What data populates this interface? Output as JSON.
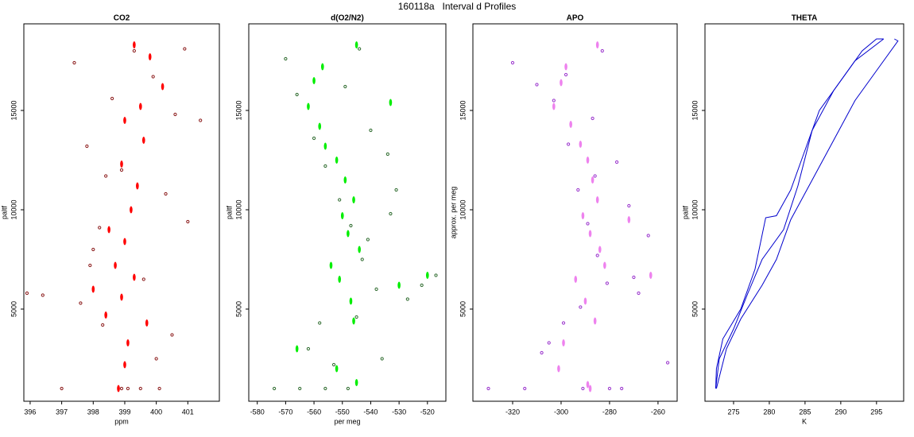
{
  "title": "160118a   Interval d Profiles",
  "chart_data": [
    {
      "type": "scatter",
      "title": "CO2",
      "xlabel": "ppm",
      "ylabel": "paltf",
      "xlim": [
        395.8,
        402
      ],
      "ylim": [
        360,
        19360
      ],
      "xticks": [
        396,
        397,
        398,
        399,
        400,
        401
      ],
      "yticks": [
        5000,
        10000,
        15000
      ],
      "series": [
        {
          "color": "#8b1a1a",
          "marker": "circle",
          "x": [
            397.0,
            397.4,
            397.8,
            398.0,
            398.3,
            398.6,
            398.9,
            399.3,
            399.6,
            400.0,
            400.3,
            400.6,
            400.9,
            401.4,
            397.6,
            398.2,
            399.9,
            400.5,
            401.0,
            395.9,
            396.4,
            398.9,
            399.1,
            399.5,
            400.1,
            397.9,
            398.4
          ],
          "y": [
            1000,
            17400,
            13200,
            8000,
            4200,
            15600,
            12000,
            18000,
            6500,
            2500,
            10800,
            14800,
            18100,
            14500,
            5300,
            9100,
            16700,
            3700,
            9400,
            5800,
            5700,
            1000,
            1000,
            1000,
            1000,
            7200,
            11700
          ]
        },
        {
          "color": "#ff0000",
          "marker": "dash",
          "x": [
            399.3,
            399.8,
            400.2,
            399.5,
            399.0,
            399.6,
            398.9,
            399.4,
            399.2,
            398.5,
            399.0,
            398.7,
            399.3,
            398.9,
            398.0,
            398.4,
            399.7,
            399.1,
            399.0,
            398.8
          ],
          "y": [
            18300,
            17700,
            16200,
            15200,
            14500,
            13500,
            12300,
            11200,
            10000,
            9000,
            8400,
            7200,
            6600,
            5600,
            6000,
            4700,
            4300,
            3300,
            2200,
            1000
          ]
        }
      ]
    },
    {
      "type": "scatter",
      "title": "d(O2/N2)",
      "xlabel": "per meg",
      "ylabel": "paltf",
      "xlim": [
        -583,
        -513.5
      ],
      "ylim": [
        360,
        19360
      ],
      "xticks": [
        -580,
        -570,
        -560,
        -550,
        -540,
        -530,
        -520
      ],
      "yticks": [
        5000,
        10000,
        15000
      ],
      "series": [
        {
          "color": "#2e6b2e",
          "marker": "circle",
          "x": [
            -570,
            -566,
            -560,
            -556,
            -551,
            -547,
            -543,
            -538,
            -534,
            -531,
            -527,
            -522,
            -517,
            -562,
            -553,
            -545,
            -540,
            -548,
            -556,
            -565,
            -574,
            -549,
            -544,
            -541,
            -533,
            -536,
            -558
          ],
          "y": [
            17600,
            15800,
            13600,
            12200,
            10500,
            9200,
            7500,
            6000,
            12800,
            11000,
            5500,
            6200,
            6700,
            3000,
            2200,
            4600,
            14000,
            1000,
            1000,
            1000,
            1000,
            16200,
            18100,
            8500,
            9800,
            2500,
            4300
          ]
        },
        {
          "color": "#00ee00",
          "marker": "dash",
          "x": [
            -545,
            -557,
            -560,
            -562,
            -558,
            -556,
            -552,
            -549,
            -546,
            -550,
            -548,
            -544,
            -554,
            -551,
            -547,
            -546,
            -533,
            -520,
            -530,
            -566,
            -552,
            -545
          ],
          "y": [
            18300,
            17200,
            16500,
            15200,
            14200,
            13200,
            12500,
            11500,
            10500,
            9700,
            8800,
            8000,
            7200,
            6500,
            5400,
            4400,
            15400,
            6700,
            6200,
            3000,
            2000,
            1300
          ]
        }
      ]
    },
    {
      "type": "scatter",
      "title": "APO",
      "ylabel": "approx. per meg",
      "xlim": [
        -336.4,
        -252.1
      ],
      "ylim": [
        360,
        19360
      ],
      "xticks": [
        -320,
        -300,
        -280,
        -260
      ],
      "yticks": [
        5000,
        10000,
        15000
      ],
      "series": [
        {
          "color": "#9932cc",
          "marker": "circle",
          "x": [
            -320,
            -310,
            -303,
            -297,
            -293,
            -289,
            -285,
            -281,
            -277,
            -272,
            -268,
            -264,
            -256,
            -305,
            -299,
            -292,
            -287,
            -283,
            -330,
            -315,
            -280,
            -275,
            -291,
            -298,
            -308,
            -270,
            -286
          ],
          "y": [
            17400,
            16300,
            15500,
            13300,
            11000,
            9300,
            7700,
            6300,
            12400,
            10200,
            5800,
            8700,
            2300,
            3300,
            4300,
            5100,
            14600,
            18000,
            1000,
            1000,
            1000,
            1000,
            1000,
            16800,
            2800,
            6600,
            11700
          ]
        },
        {
          "color": "#ee82ee",
          "marker": "dash",
          "x": [
            -285,
            -298,
            -300,
            -303,
            -296,
            -292,
            -289,
            -287,
            -285,
            -291,
            -288,
            -284,
            -282,
            -294,
            -290,
            -286,
            -263,
            -272,
            -299,
            -301,
            -289,
            -288
          ],
          "y": [
            18300,
            17200,
            16400,
            15200,
            14300,
            13300,
            12500,
            11500,
            10500,
            9700,
            8800,
            8000,
            7200,
            6500,
            5400,
            4400,
            6700,
            9500,
            3300,
            2000,
            1200,
            1000
          ]
        }
      ]
    },
    {
      "type": "line",
      "title": "THETA",
      "xlabel": "K",
      "ylabel": "paltf",
      "xlim": [
        271,
        298.8
      ],
      "ylim": [
        360,
        19360
      ],
      "xticks": [
        275,
        280,
        285,
        290,
        295
      ],
      "yticks": [
        5000,
        10000,
        15000
      ],
      "series": [
        {
          "color": "#0000cd",
          "x": [
            272.5,
            272.6,
            273.5,
            276,
            278,
            279.5,
            281,
            283,
            285,
            287,
            290,
            293,
            295,
            296
          ],
          "y": [
            1000,
            2000,
            3500,
            5000,
            7000,
            9600,
            9700,
            11000,
            13000,
            15000,
            16500,
            18000,
            18600,
            18600
          ]
        },
        {
          "color": "#0000cd",
          "x": [
            272.5,
            273,
            275,
            277,
            279,
            282,
            284,
            286,
            289,
            292,
            296
          ],
          "y": [
            1000,
            2500,
            4000,
            5800,
            7500,
            9000,
            11200,
            14000,
            16000,
            17500,
            18600
          ]
        },
        {
          "color": "#0000cd",
          "x": [
            272.6,
            274,
            276,
            279,
            281,
            283,
            286,
            289,
            292,
            295,
            298,
            297.5
          ],
          "y": [
            1000,
            3000,
            4500,
            6200,
            7500,
            9500,
            11500,
            13500,
            15500,
            17000,
            18500,
            18600
          ]
        }
      ]
    }
  ]
}
